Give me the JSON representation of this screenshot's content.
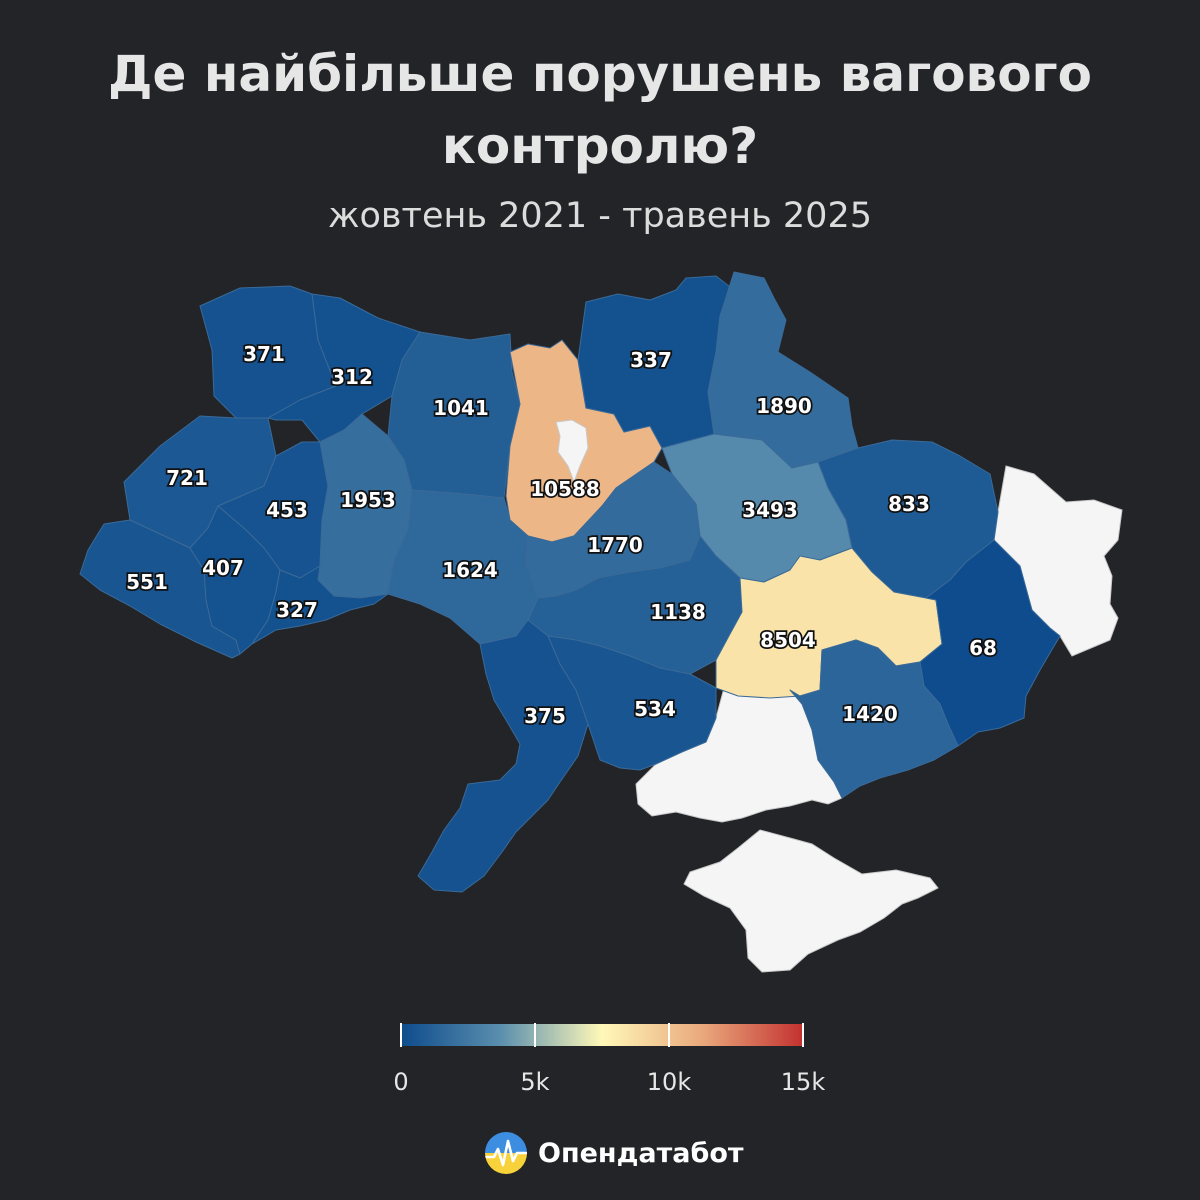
{
  "title_lines": [
    "Де найбільше порушень вагового",
    "контролю?"
  ],
  "subtitle": "жовтень 2021 - травень 2025",
  "brand": {
    "name": "Опендатабот",
    "logo_icon": "opendatabot-logo-icon"
  },
  "color_scale": {
    "min": 0,
    "max": 15000,
    "stops": [
      "#0d4b8c",
      "#5b8fae",
      "#fff8b8",
      "#e9a87c",
      "#c3302f"
    ],
    "ticks": [
      0,
      5000,
      10000,
      15000
    ],
    "tick_labels": [
      "0",
      "5k",
      "10k",
      "15k"
    ]
  },
  "occupied_color": "#f5f5f5",
  "regions": [
    {
      "id": "volyn",
      "value": 371,
      "label": "371"
    },
    {
      "id": "rivne",
      "value": 312,
      "label": "312"
    },
    {
      "id": "zhytomyr",
      "value": 1041,
      "label": "1041"
    },
    {
      "id": "kyiv",
      "value": 10588,
      "label": "10588"
    },
    {
      "id": "chernihiv",
      "value": 337,
      "label": "337"
    },
    {
      "id": "sumy",
      "value": 1890,
      "label": "1890"
    },
    {
      "id": "kharkiv",
      "value": 833,
      "label": "833"
    },
    {
      "id": "poltava",
      "value": 3493,
      "label": "3493"
    },
    {
      "id": "lviv",
      "value": 721,
      "label": "721"
    },
    {
      "id": "ternopil",
      "value": 453,
      "label": "453"
    },
    {
      "id": "khmelnytskyi",
      "value": 1953,
      "label": "1953"
    },
    {
      "id": "vinnytsia",
      "value": 1624,
      "label": "1624"
    },
    {
      "id": "cherkasy",
      "value": 1770,
      "label": "1770"
    },
    {
      "id": "kirovohrad",
      "value": 1138,
      "label": "1138"
    },
    {
      "id": "dnipro",
      "value": 8504,
      "label": "8504"
    },
    {
      "id": "donetsk",
      "value": 68,
      "label": "68"
    },
    {
      "id": "zakarpattia",
      "value": 551,
      "label": "551"
    },
    {
      "id": "ivano-frankivsk",
      "value": 407,
      "label": "407"
    },
    {
      "id": "chernivtsi",
      "value": 327,
      "label": "327"
    },
    {
      "id": "odesa",
      "value": 375,
      "label": "375"
    },
    {
      "id": "mykolaiv",
      "value": 534,
      "label": "534"
    },
    {
      "id": "zaporizhzhia",
      "value": 1420,
      "label": "1420"
    }
  ]
}
